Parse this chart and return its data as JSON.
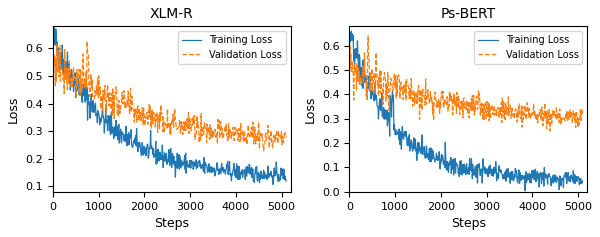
{
  "xlmr_title": "XLM-R",
  "psbert_title": "Ps-BERT",
  "xlabel": "Steps",
  "ylabel": "Loss",
  "train_color": "#1f77b4",
  "val_color": "#ff7f0e",
  "train_label": "Training Loss",
  "val_label": "Validation Loss",
  "xlmr_ylim": [
    0.08,
    0.68
  ],
  "psbert_ylim": [
    0.0,
    0.68
  ],
  "xlmr_yticks": [
    0.1,
    0.2,
    0.3,
    0.4,
    0.5,
    0.6
  ],
  "psbert_yticks": [
    0.0,
    0.1,
    0.2,
    0.3,
    0.4,
    0.5,
    0.6
  ],
  "xticks": [
    0,
    1000,
    2000,
    3000,
    4000,
    5000
  ],
  "xlim": [
    0,
    5200
  ],
  "n_steps": 500,
  "max_step": 5100,
  "figsize": [
    6.0,
    2.37
  ],
  "dpi": 100
}
